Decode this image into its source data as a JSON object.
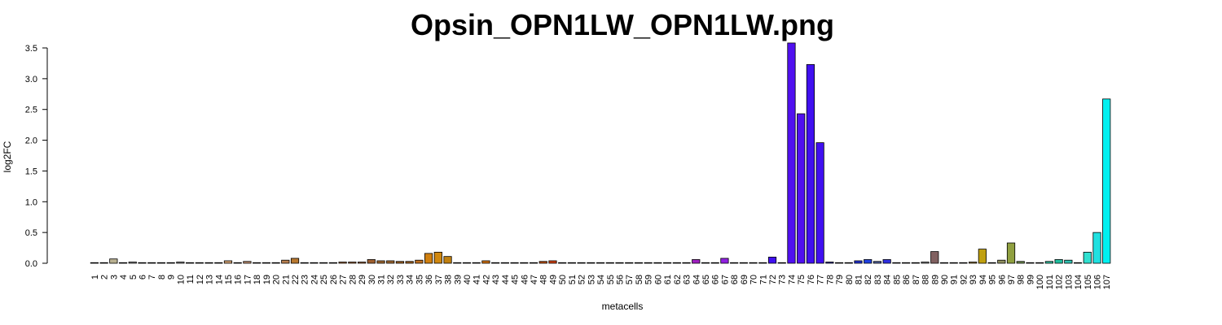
{
  "chart_data": {
    "type": "bar",
    "title": "Opsin_OPN1LW_OPN1LW.png",
    "xlabel": "metacells",
    "ylabel": "log2FC",
    "ylim": [
      0,
      3.5
    ],
    "yticks": [
      "0.0",
      "0.5",
      "1.0",
      "1.5",
      "2.0",
      "2.5",
      "3.0",
      "3.5"
    ],
    "grid": false,
    "legend": "none",
    "categories": [
      "1",
      "2",
      "3",
      "4",
      "5",
      "6",
      "7",
      "8",
      "9",
      "10",
      "11",
      "12",
      "13",
      "14",
      "15",
      "16",
      "17",
      "18",
      "19",
      "20",
      "21",
      "22",
      "23",
      "24",
      "25",
      "26",
      "27",
      "28",
      "29",
      "30",
      "31",
      "32",
      "33",
      "34",
      "35",
      "36",
      "37",
      "38",
      "39",
      "40",
      "41",
      "42",
      "43",
      "44",
      "45",
      "46",
      "47",
      "48",
      "49",
      "50",
      "51",
      "52",
      "53",
      "54",
      "55",
      "56",
      "57",
      "58",
      "59",
      "60",
      "61",
      "62",
      "63",
      "64",
      "65",
      "66",
      "67",
      "68",
      "69",
      "70",
      "71",
      "72",
      "73",
      "74",
      "75",
      "76",
      "77",
      "78",
      "79",
      "80",
      "81",
      "82",
      "83",
      "84",
      "85",
      "86",
      "87",
      "88",
      "89",
      "90",
      "91",
      "92",
      "93",
      "94",
      "95",
      "96",
      "97",
      "98",
      "99",
      "100",
      "101",
      "102",
      "103",
      "104",
      "105",
      "106",
      "107"
    ],
    "values": [
      0.01,
      0.01,
      0.07,
      0.01,
      0.02,
      0.01,
      0.01,
      0.01,
      0.01,
      0.02,
      0.01,
      0.01,
      0.01,
      0.01,
      0.04,
      0.01,
      0.03,
      0.01,
      0.01,
      0.01,
      0.05,
      0.08,
      0.01,
      0.01,
      0.01,
      0.01,
      0.02,
      0.02,
      0.02,
      0.06,
      0.04,
      0.04,
      0.03,
      0.03,
      0.05,
      0.16,
      0.18,
      0.11,
      0.01,
      0.01,
      0.01,
      0.04,
      0.01,
      0.01,
      0.01,
      0.01,
      0.01,
      0.03,
      0.04,
      0.01,
      0.01,
      0.01,
      0.01,
      0.01,
      0.01,
      0.01,
      0.01,
      0.01,
      0.01,
      0.01,
      0.01,
      0.01,
      0.01,
      0.06,
      0.01,
      0.01,
      0.08,
      0.01,
      0.01,
      0.01,
      0.01,
      0.1,
      0.01,
      3.58,
      2.43,
      3.23,
      1.96,
      0.02,
      0.01,
      0.01,
      0.04,
      0.06,
      0.03,
      0.06,
      0.01,
      0.01,
      0.01,
      0.02,
      0.19,
      0.01,
      0.01,
      0.01,
      0.02,
      0.23,
      0.01,
      0.05,
      0.33,
      0.03,
      0.01,
      0.01,
      0.03,
      0.06,
      0.05,
      0.01,
      0.18,
      0.5,
      2.67
    ],
    "colors": [
      "#a0a0a0",
      "#909090",
      "#b8b090",
      "#909090",
      "#909090",
      "#909090",
      "#a0a0a0",
      "#a0a0a0",
      "#a0a0a0",
      "#909090",
      "#a0a0a0",
      "#909090",
      "#909090",
      "#909090",
      "#d0a070",
      "#909090",
      "#c09070",
      "#909090",
      "#909090",
      "#909090",
      "#b88050",
      "#b87830",
      "#909090",
      "#909090",
      "#909090",
      "#909090",
      "#b07040",
      "#b07040",
      "#b07040",
      "#a06030",
      "#a06830",
      "#a06830",
      "#a06020",
      "#a06020",
      "#c07020",
      "#d08010",
      "#d08810",
      "#c08010",
      "#909090",
      "#909090",
      "#909090",
      "#d07010",
      "#909090",
      "#909090",
      "#909090",
      "#909090",
      "#909090",
      "#c05010",
      "#d04010",
      "#909090",
      "#909090",
      "#909090",
      "#909090",
      "#909090",
      "#909090",
      "#909090",
      "#909090",
      "#909090",
      "#909090",
      "#909090",
      "#909090",
      "#909090",
      "#909090",
      "#a020c0",
      "#909090",
      "#909090",
      "#9020e0",
      "#909090",
      "#909090",
      "#909090",
      "#909090",
      "#4010f0",
      "#909090",
      "#5010f0",
      "#5010f0",
      "#4010f0",
      "#4010f0",
      "#3030a0",
      "#909090",
      "#909090",
      "#2030d0",
      "#2040e0",
      "#5060a0",
      "#3030e0",
      "#909090",
      "#909090",
      "#909090",
      "#909090",
      "#806060",
      "#909090",
      "#909090",
      "#909090",
      "#a08040",
      "#c0a010",
      "#909090",
      "#909060",
      "#90a040",
      "#709050",
      "#909090",
      "#909090",
      "#30c0a0",
      "#20c0a0",
      "#30c0b0",
      "#909090",
      "#30e0d0",
      "#20e0e0",
      "#00f0f0"
    ]
  }
}
